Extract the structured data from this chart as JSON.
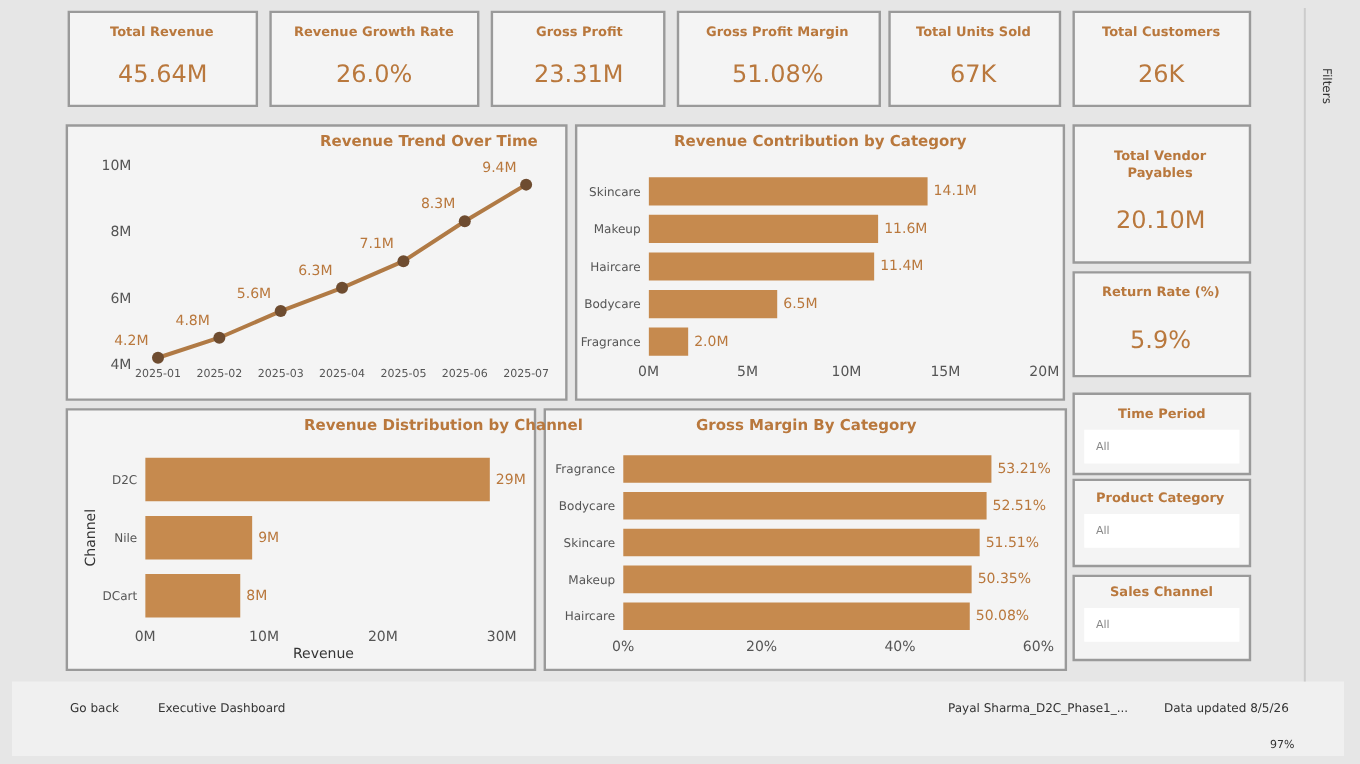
{
  "chart_data": [
    {
      "type": "other",
      "annotations": [
        "Total Revenue",
        "45.64M",
        "Revenue Growth Rate",
        "26.0%",
        "Gross Profit",
        "23.31M",
        "Gross Profit Margin",
        "51.08%",
        "Total Units Sold",
        "67K",
        "Total Customers",
        "26K",
        "Total Vendor Payables",
        "20.10M",
        "Return Rate (%)",
        "5.9%",
        "Time Period",
        "All",
        "Product Category",
        "All",
        "Sales Channel",
        "All",
        "Go back",
        "Executive Dashboard",
        "Payal Sharma_D2C_Phase1_...",
        "Data updated 8/5/26",
        "97%",
        "Filters"
      ]
    },
    {
      "type": "line",
      "title": "Revenue Trend Over Time",
      "categories": [
        "2025-01",
        "2025-02",
        "2025-03",
        "2025-04",
        "2025-05",
        "2025-06",
        "2025-07"
      ],
      "values": [
        4.2,
        4.8,
        5.6,
        6.3,
        7.1,
        8.3,
        9.4
      ],
      "value_labels": [
        "4.2M",
        "4.8M",
        "5.6M",
        "6.3M",
        "7.1M",
        "8.3M",
        "9.4M"
      ],
      "color": "#b07a45",
      "marker": "circle",
      "ylim": [
        4,
        10
      ],
      "yticks": [
        {
          "value": 4,
          "label": "4M"
        },
        {
          "value": 6,
          "label": "6M"
        },
        {
          "value": 8,
          "label": "8M"
        },
        {
          "value": 10,
          "label": "10M"
        }
      ]
    },
    {
      "type": "bar",
      "orientation": "horizontal",
      "title": "Revenue Contribution by Category",
      "categories": [
        "Skincare",
        "Makeup",
        "Haircare",
        "Bodycare",
        "Fragrance"
      ],
      "values": [
        14.1,
        11.6,
        11.4,
        6.5,
        2.0
      ],
      "value_labels": [
        "14.1M",
        "11.6M",
        "11.4M",
        "6.5M",
        "2.0M"
      ],
      "color": "#c68a4e",
      "xlim": [
        0,
        20
      ],
      "xticks": [
        {
          "value": 0,
          "label": "0M"
        },
        {
          "value": 5,
          "label": "5M"
        },
        {
          "value": 10,
          "label": "10M"
        },
        {
          "value": 15,
          "label": "15M"
        },
        {
          "value": 20,
          "label": "20M"
        }
      ]
    },
    {
      "type": "bar",
      "orientation": "horizontal",
      "title": "Revenue Distribution by Channel",
      "xlabel": "Revenue",
      "ylabel": "Channel",
      "categories": [
        "D2C",
        "Nile",
        "DCart"
      ],
      "values": [
        29,
        9,
        8
      ],
      "value_labels": [
        "29M",
        "9M",
        "8M"
      ],
      "color": "#c68a4e",
      "xlim": [
        0,
        30
      ],
      "xticks": [
        {
          "value": 0,
          "label": "0M"
        },
        {
          "value": 10,
          "label": "10M"
        },
        {
          "value": 20,
          "label": "20M"
        },
        {
          "value": 30,
          "label": "30M"
        }
      ]
    },
    {
      "type": "bar",
      "orientation": "horizontal",
      "title": "Gross Margin By Category",
      "categories": [
        "Fragrance",
        "Bodycare",
        "Skincare",
        "Makeup",
        "Haircare"
      ],
      "values": [
        53.21,
        52.51,
        51.51,
        50.35,
        50.08
      ],
      "value_labels": [
        "53.21%",
        "52.51%",
        "51.51%",
        "50.35%",
        "50.08%"
      ],
      "color": "#c68a4e",
      "xlim": [
        0,
        60
      ],
      "xticks": [
        {
          "value": 0,
          "label": "0%"
        },
        {
          "value": 20,
          "label": "20%"
        },
        {
          "value": 40,
          "label": "40%"
        },
        {
          "value": 60,
          "label": "60%"
        }
      ]
    }
  ]
}
